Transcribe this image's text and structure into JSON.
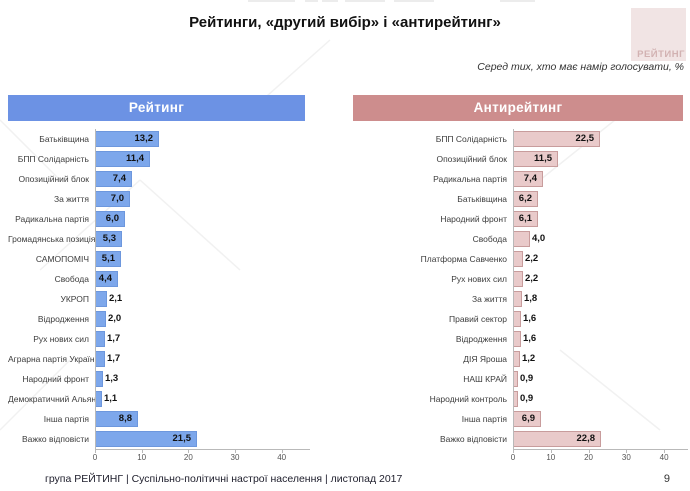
{
  "slide": {
    "title": "Рейтинги, «другий вибір» і «антирейтинг»",
    "subtitle": "Серед тих, хто має намір голосувати, %",
    "logo_text": "РЕЙТИНГ",
    "footer": "група РЕЙТИНГ  | Суспільно-політичні настрої населення  |  листопад 2017",
    "page_number": "9"
  },
  "chart_data": [
    {
      "type": "bar",
      "orientation": "horizontal",
      "title": "Рейтинг",
      "header_color": "#6c92e4",
      "bar_color": "#7da7eb",
      "bar_border_color": "#6d97dd",
      "categories": [
        "Батьківщина",
        "БПП Солідарність",
        "Опозиційний блок",
        "За життя",
        "Радикальна партія",
        "Громадянська позиція",
        "САМОПОМІЧ",
        "Свобода",
        "УКРОП",
        "Відродження",
        "Рух нових сил",
        "Аграрна партія України",
        "Народний фронт",
        "Демократичний Альянс",
        "Інша партія",
        "Важко відповісти"
      ],
      "values": [
        13.2,
        11.4,
        7.4,
        7.0,
        6.0,
        5.3,
        5.1,
        4.4,
        2.1,
        2.0,
        1.7,
        1.7,
        1.3,
        1.1,
        8.8,
        21.5
      ],
      "value_labels": [
        "13,2",
        "11,4",
        "7,4",
        "7,0",
        "6,0",
        "5,3",
        "5,1",
        "4,4",
        "2,1",
        "2,0",
        "1,7",
        "1,7",
        "1,3",
        "1,1",
        "8,8",
        "21,5"
      ],
      "xlim": [
        0,
        45
      ],
      "axis_ticks": [
        "0",
        "10",
        "20",
        "30",
        "40"
      ],
      "grid": false,
      "legend": null
    },
    {
      "type": "bar",
      "orientation": "horizontal",
      "title": "Антирейтинг",
      "header_color": "#cd8d8d",
      "bar_color": "#e9caca",
      "bar_border_color": "#c89c9c",
      "categories": [
        "БПП Солідарність",
        "Опозиційний блок",
        "Радикальна партія",
        "Батьківщина",
        "Народний фронт",
        "Свобода",
        "Платформа Савченко",
        "Рух нових сил",
        "За життя",
        "Правий сектор",
        "Відродження",
        "ДІЯ Яроша",
        "НАШ КРАЙ",
        "Народний контроль",
        "Інша партія",
        "Важко відповісти"
      ],
      "values": [
        22.5,
        11.5,
        7.4,
        6.2,
        6.1,
        4.0,
        2.2,
        2.2,
        1.8,
        1.6,
        1.6,
        1.2,
        0.9,
        0.9,
        6.9,
        22.8
      ],
      "value_labels": [
        "22,5",
        "11,5",
        "7,4",
        "6,2",
        "6,1",
        "4,0",
        "2,2",
        "2,2",
        "1,8",
        "1,6",
        "1,6",
        "1,2",
        "0,9",
        "0,9",
        "6,9",
        "22,8"
      ],
      "xlim": [
        0,
        45
      ],
      "axis_ticks": [
        "0",
        "10",
        "20",
        "30",
        "40"
      ],
      "grid": false,
      "legend": null
    }
  ]
}
